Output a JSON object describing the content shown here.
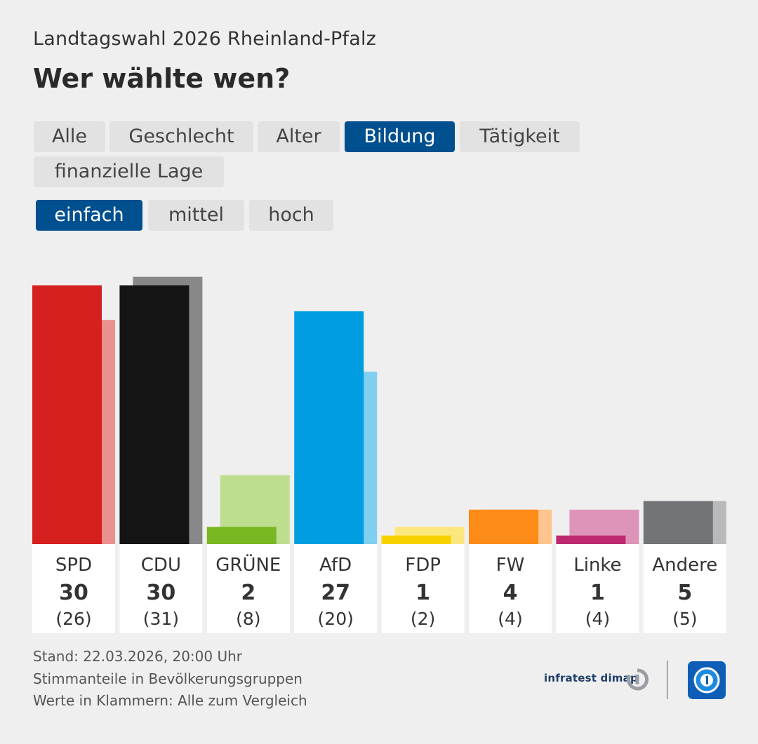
{
  "header": {
    "subtitle": "Landtagswahl 2026 Rheinland-Pfalz",
    "title": "Wer wählte wen?"
  },
  "tabs": [
    {
      "label": "Alle",
      "active": false
    },
    {
      "label": "Geschlecht",
      "active": false
    },
    {
      "label": "Alter",
      "active": false
    },
    {
      "label": "Bildung",
      "active": true
    },
    {
      "label": "Tätigkeit",
      "active": false
    },
    {
      "label": "finanzielle Lage",
      "active": false
    }
  ],
  "subtabs": [
    {
      "label": "einfach",
      "active": true
    },
    {
      "label": "mittel",
      "active": false
    },
    {
      "label": "hoch",
      "active": false
    }
  ],
  "chart_data": {
    "type": "bar",
    "title": "Wer wählte wen?",
    "categories": [
      "SPD",
      "CDU",
      "GRÜNE",
      "AfD",
      "FDP",
      "FW",
      "Linke",
      "Andere"
    ],
    "series": [
      {
        "name": "einfach",
        "values": [
          30,
          30,
          2,
          27,
          1,
          4,
          1,
          5
        ]
      },
      {
        "name": "Alle",
        "values": [
          26,
          31,
          8,
          20,
          2,
          4,
          4,
          5
        ]
      }
    ],
    "value_labels": [
      "30",
      "30",
      "2",
      "27",
      "1",
      "4",
      "1",
      "5"
    ],
    "comparison_labels": [
      "(26)",
      "(31)",
      "(8)",
      "(20)",
      "(2)",
      "(4)",
      "(4)",
      "(5)"
    ],
    "colors": [
      "#d62020",
      "#141414",
      "#79b823",
      "#009ee0",
      "#f8d200",
      "#fd8b18",
      "#bc2970",
      "#737477"
    ],
    "comparison_colors": [
      "#ec8f8f",
      "#888888",
      "#bfdd8f",
      "#80cff0",
      "#fce77f",
      "#fec48b",
      "#de94b8",
      "#b8b9ba"
    ],
    "ylim": [
      0,
      31
    ],
    "xlabel": "",
    "ylabel": ""
  },
  "footer": {
    "lines": [
      "Stand: 22.03.2026, 20:00 Uhr",
      "Stimmanteile in Bevölkerungsgruppen",
      "Werte in Klammern: Alle zum Vergleich"
    ],
    "source": "infratest dimap"
  }
}
